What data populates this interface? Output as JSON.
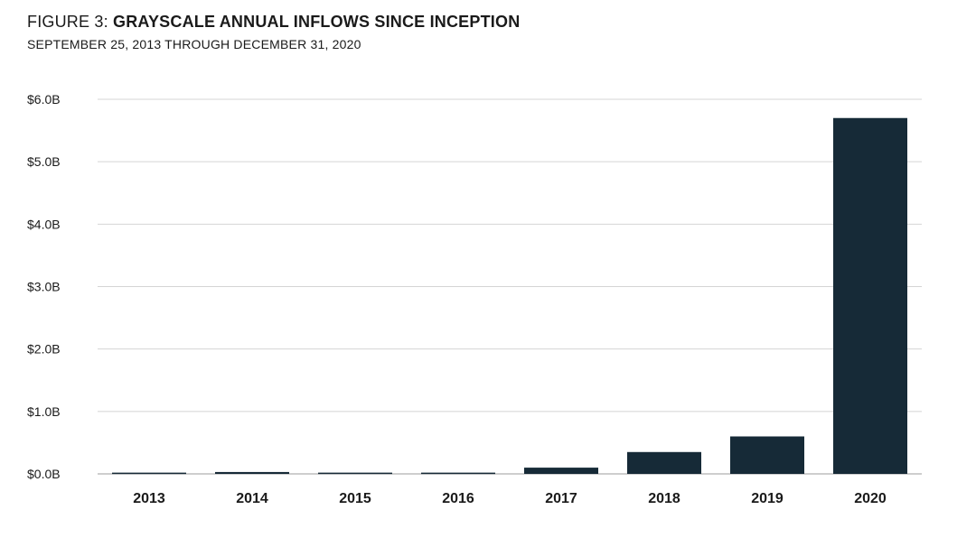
{
  "header": {
    "title_prefix": "FIGURE 3:",
    "title_main": "GRAYSCALE ANNUAL INFLOWS SINCE INCEPTION",
    "subtitle": "SEPTEMBER 25, 2013 THROUGH DECEMBER 31, 2020"
  },
  "colors": {
    "bar": "#162a37",
    "grid": "#d4d4d4",
    "axis": "#bdbdbd"
  },
  "chart_data": {
    "type": "bar",
    "title": "GRAYSCALE ANNUAL INFLOWS SINCE INCEPTION",
    "subtitle": "SEPTEMBER 25, 2013 THROUGH DECEMBER 31, 2020",
    "xlabel": "",
    "ylabel": "",
    "categories": [
      "2013",
      "2014",
      "2015",
      "2016",
      "2017",
      "2018",
      "2019",
      "2020"
    ],
    "values": [
      0.02,
      0.03,
      0.02,
      0.02,
      0.1,
      0.35,
      0.6,
      5.7
    ],
    "units": "billions USD",
    "ylim": [
      0,
      6
    ],
    "yticks": [
      0,
      1,
      2,
      3,
      4,
      5,
      6
    ],
    "ytick_labels": [
      "$0.0B",
      "$1.0B",
      "$2.0B",
      "$3.0B",
      "$4.0B",
      "$5.0B",
      "$6.0B"
    ],
    "grid": true,
    "legend": "none"
  }
}
